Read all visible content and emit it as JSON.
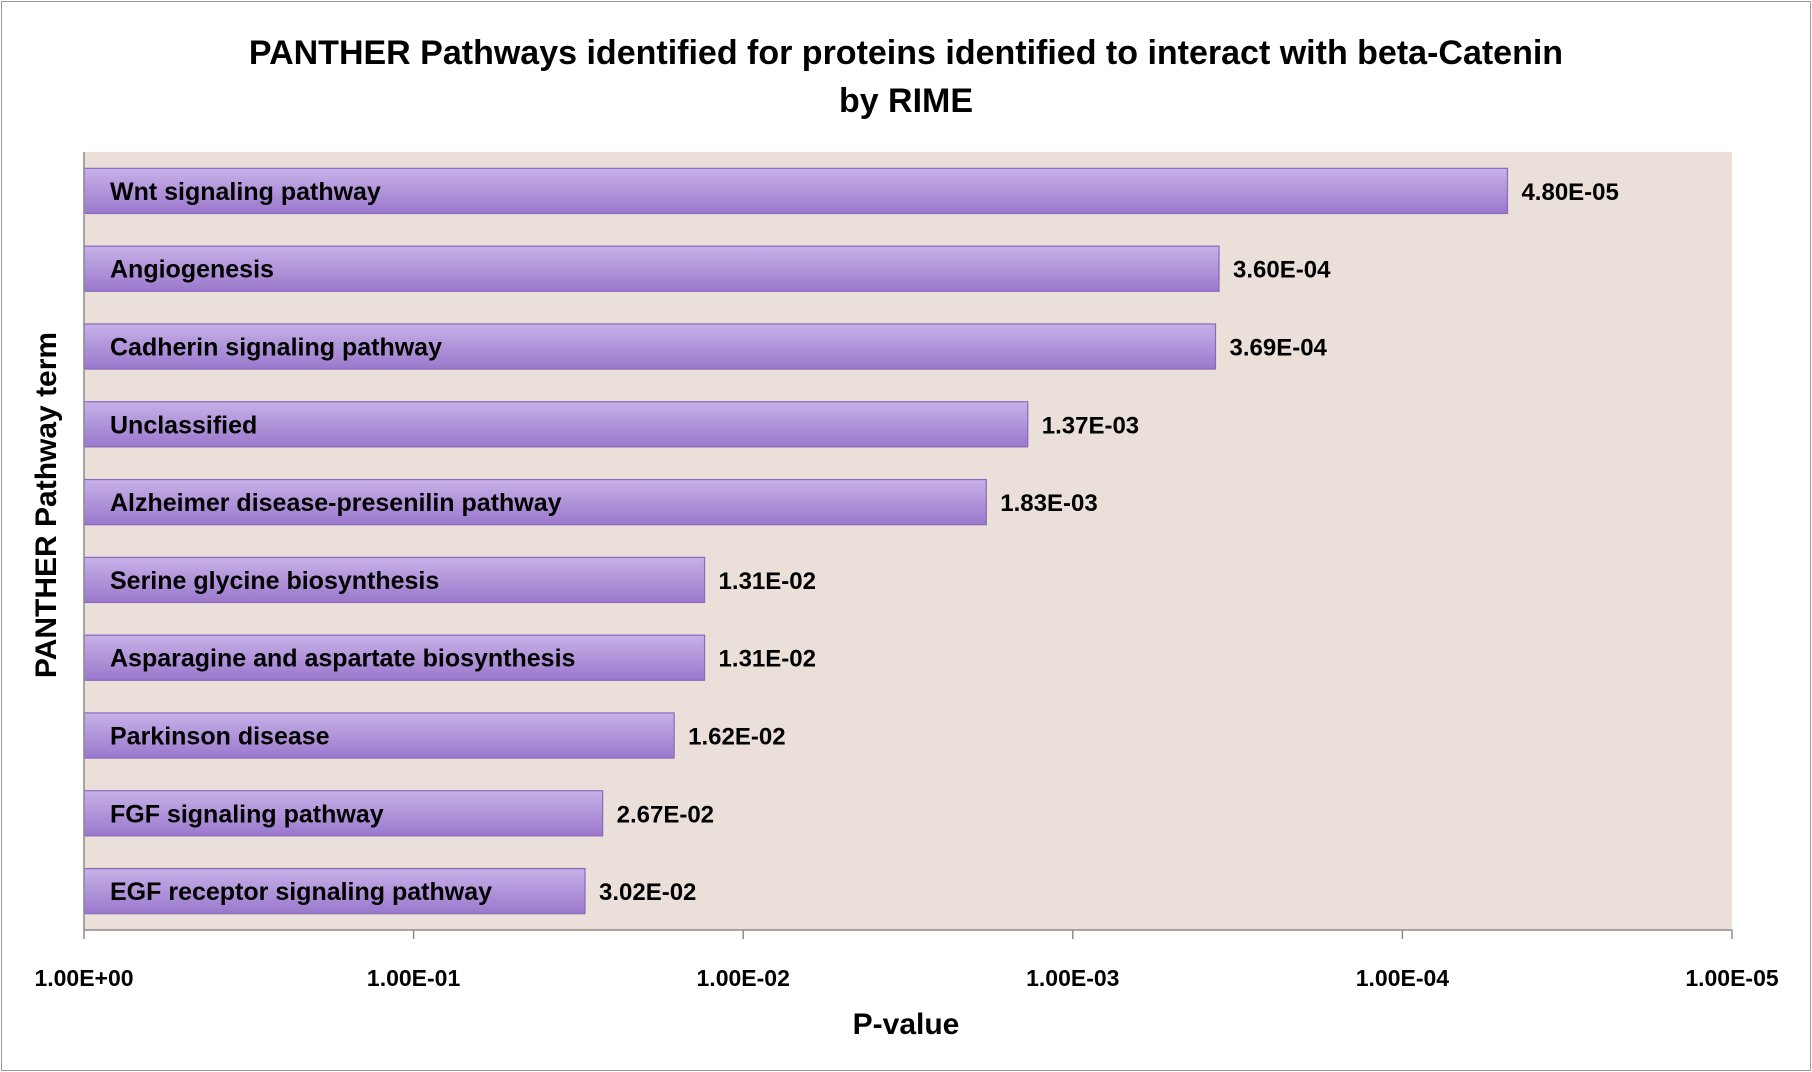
{
  "chart_data": {
    "type": "bar",
    "orientation": "horizontal",
    "title_line1": "PANTHER Pathways identified for proteins identified to interact with beta-Catenin",
    "title_line2": "by RIME",
    "xlabel": "P-value",
    "ylabel": "PANTHER Pathway term",
    "x_scale": "log",
    "x_reversed": true,
    "xlim": [
      1,
      1e-05
    ],
    "x_ticks": [
      1,
      0.1,
      0.01,
      0.001,
      0.0001,
      1e-05
    ],
    "x_tick_labels": [
      "1.00E+00",
      "1.00E-01",
      "1.00E-02",
      "1.00E-03",
      "1.00E-04",
      "1.00E-05"
    ],
    "grid": false,
    "legend": "none",
    "categories": [
      "Wnt signaling pathway",
      "Angiogenesis",
      "Cadherin signaling pathway",
      "Unclassified",
      "Alzheimer disease-presenilin pathway",
      "Serine glycine biosynthesis",
      "Asparagine and aspartate biosynthesis",
      "Parkinson disease",
      "FGF signaling pathway",
      "EGF receptor signaling pathway"
    ],
    "values": [
      4.8e-05,
      0.00036,
      0.000369,
      0.00137,
      0.00183,
      0.0131,
      0.0131,
      0.0162,
      0.0267,
      0.0302
    ],
    "data_labels": [
      "4.80E-05",
      "3.60E-04",
      "3.69E-04",
      "1.37E-03",
      "1.83E-03",
      "1.31E-02",
      "1.31E-02",
      "1.62E-02",
      "2.67E-02",
      "3.02E-02"
    ],
    "colors": {
      "plot_background": "#eadfd9",
      "bar_fill_top": "#c7b1e8",
      "bar_fill_bottom": "#9a78cc",
      "bar_stroke": "#8a68bd",
      "axis": "#8c8c8c"
    }
  }
}
